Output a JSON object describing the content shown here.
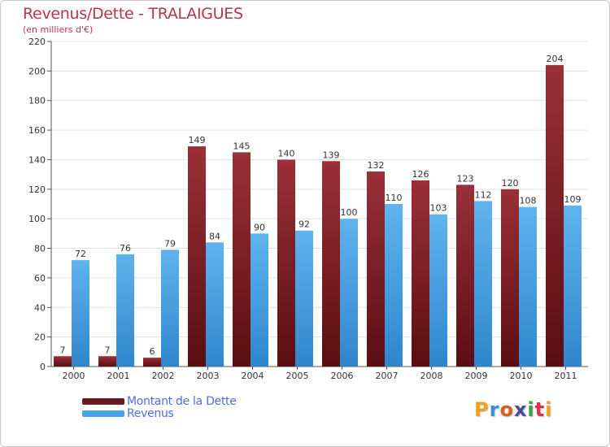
{
  "title": "Revenus/Dette - TRALAIGUES",
  "subtitle": "(en milliers d'€)",
  "chart_data": {
    "type": "bar",
    "title": "Revenus/Dette - TRALAIGUES",
    "subtitle": "(en milliers d'€)",
    "xlabel": "",
    "ylabel": "",
    "categories": [
      "2000",
      "2001",
      "2002",
      "2003",
      "2004",
      "2005",
      "2006",
      "2007",
      "2008",
      "2009",
      "2010",
      "2011"
    ],
    "series": [
      {
        "name": "Montant de la Dette",
        "color": "#7a1f24",
        "values": [
          7,
          7,
          6,
          149,
          145,
          140,
          139,
          132,
          126,
          123,
          120,
          204
        ]
      },
      {
        "name": "Revenus",
        "color": "#3d9de0",
        "values": [
          72,
          76,
          79,
          84,
          90,
          92,
          100,
          110,
          103,
          112,
          108,
          109
        ]
      }
    ],
    "ylim": [
      0,
      220
    ],
    "yticks": [
      0,
      20,
      40,
      60,
      80,
      100,
      120,
      140,
      160,
      180,
      200,
      220
    ],
    "grid": true,
    "legend_position": "bottom-left"
  },
  "legend": {
    "items": [
      {
        "label": "Montant de la Dette",
        "color": "#6b1a1f"
      },
      {
        "label": "Revenus",
        "color": "#4aa3e6"
      }
    ]
  },
  "logo": {
    "letters": [
      "P",
      "r",
      "o",
      "x",
      "i",
      "t",
      "i"
    ],
    "colors": [
      "#f0a020",
      "#3a8fd8",
      "#e05a20",
      "#4a4a9a",
      "#3aa04a",
      "#e03050",
      "#f0a020"
    ]
  }
}
